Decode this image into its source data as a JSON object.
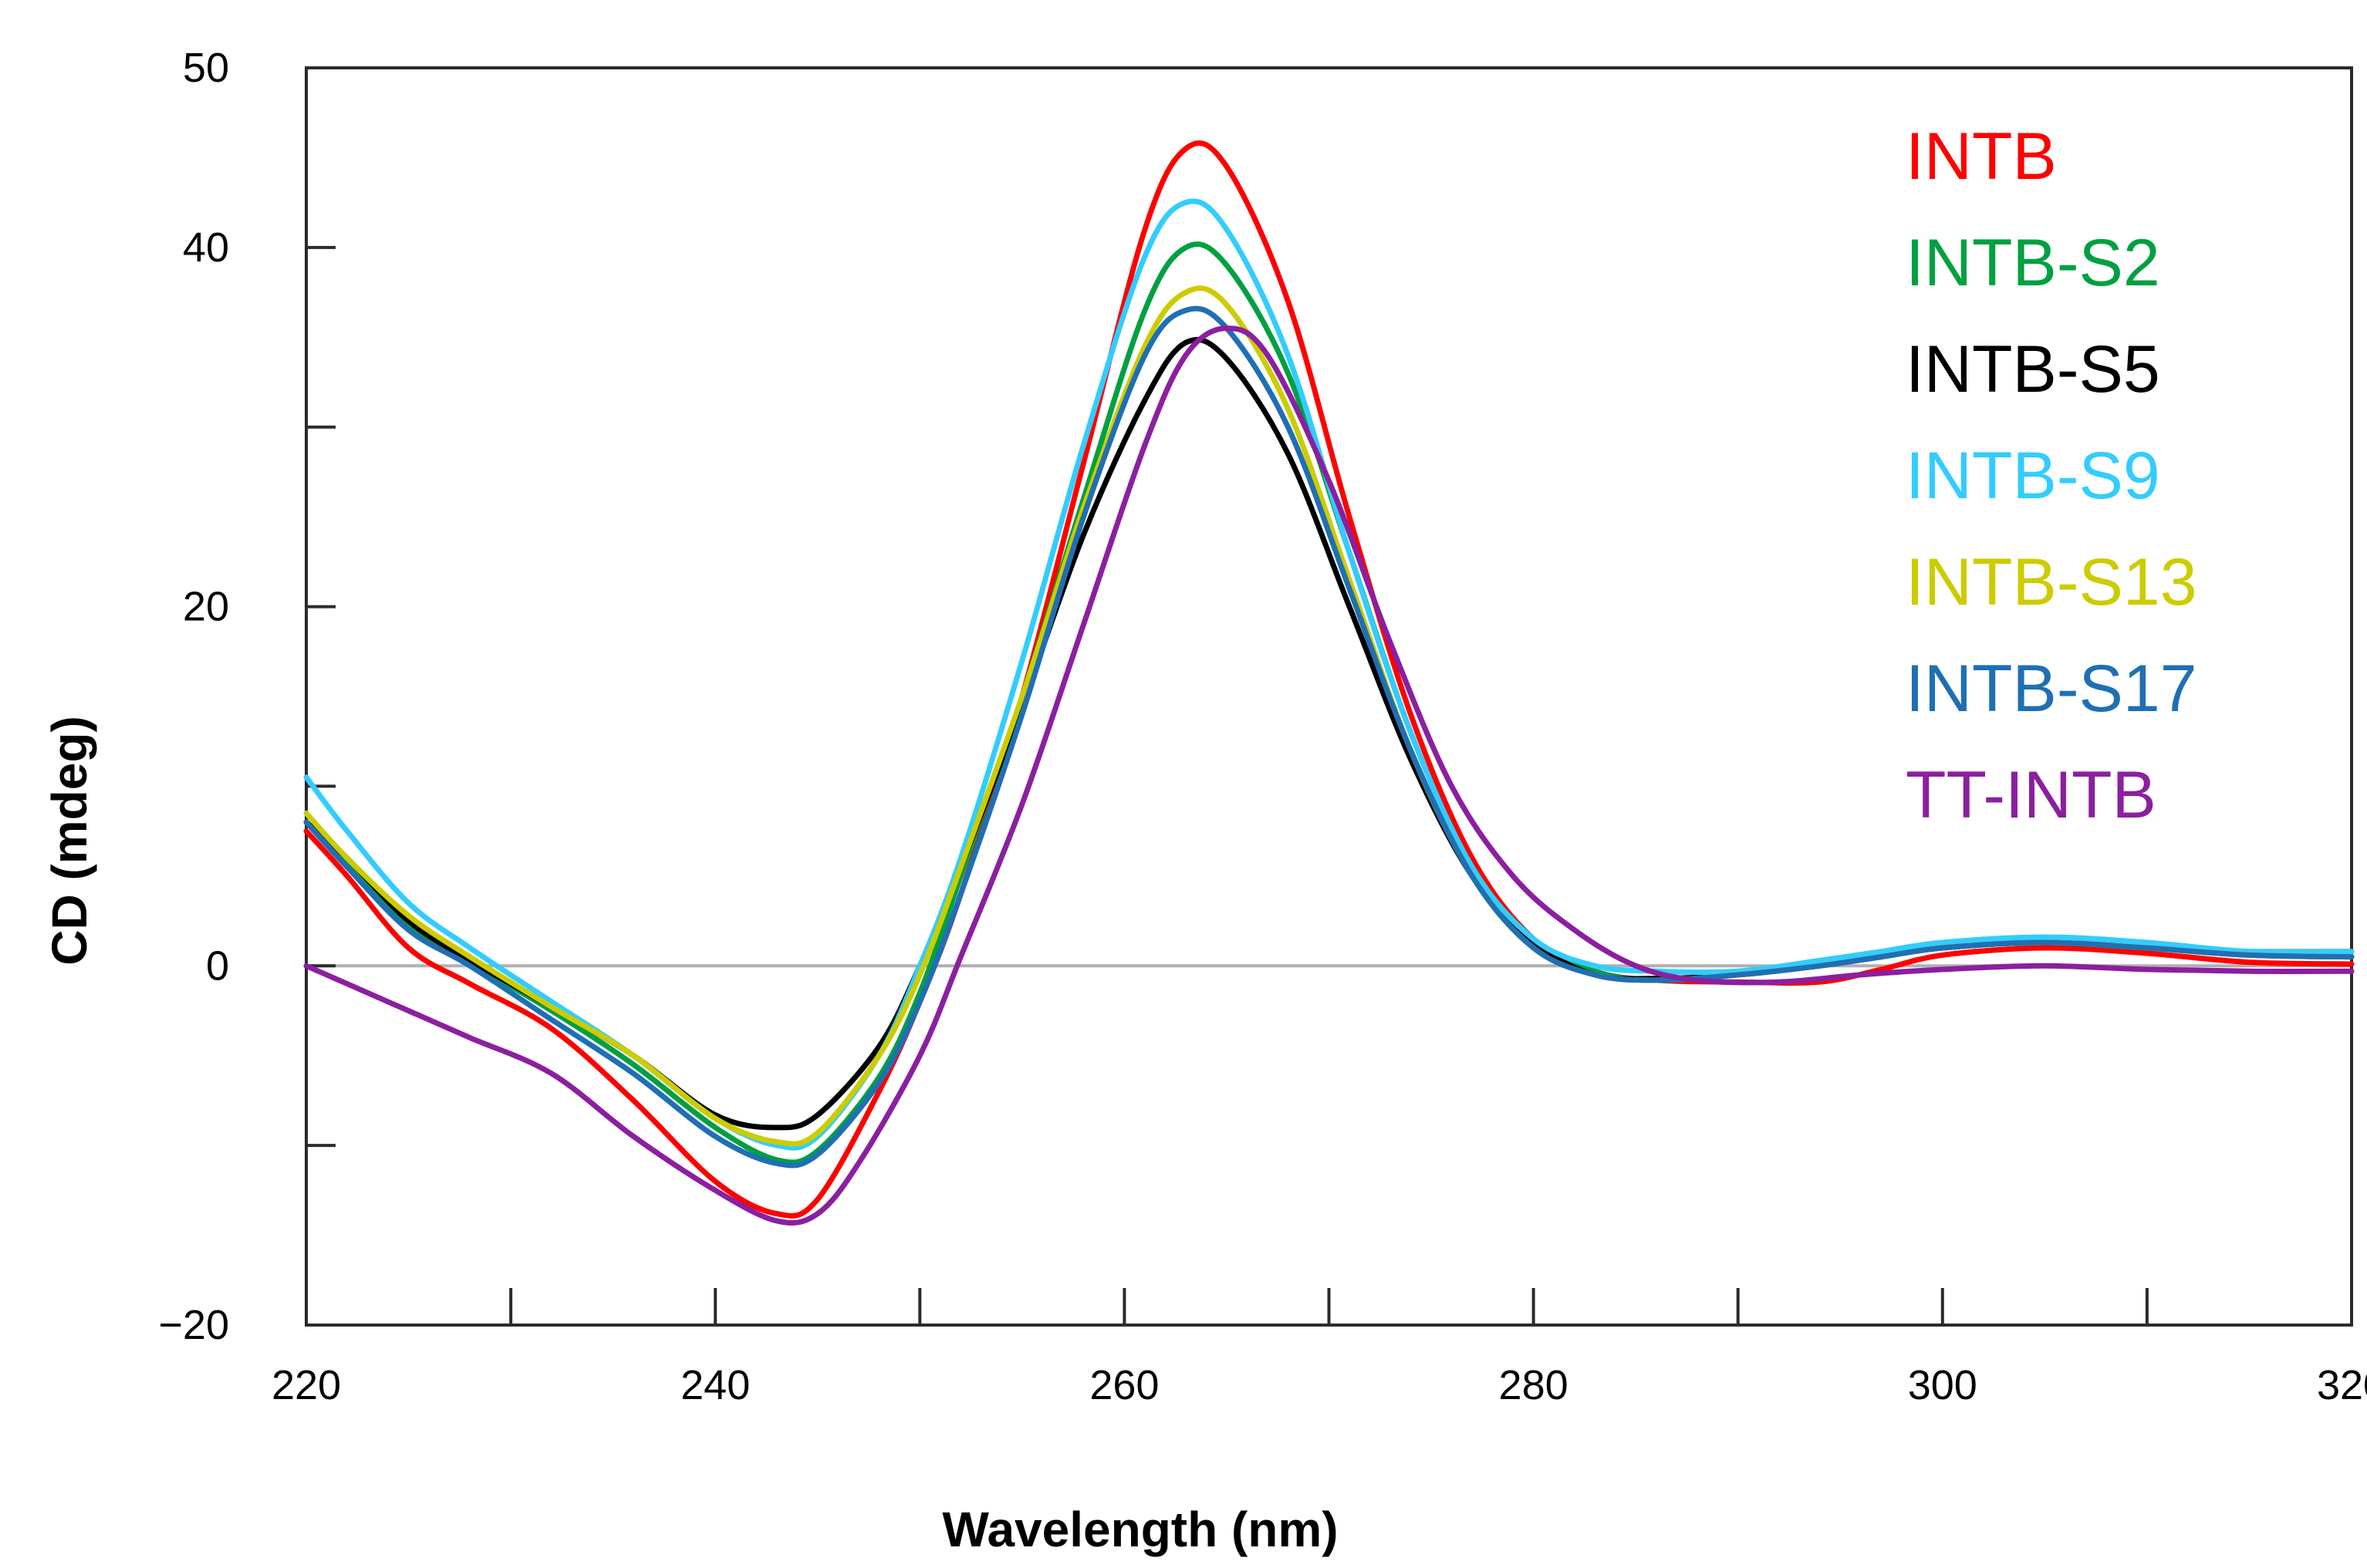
{
  "chart_data": {
    "type": "line",
    "title": "",
    "xlabel": "Wavelength (nm)",
    "ylabel": "CD (mdeg)",
    "xlim": [
      220,
      320
    ],
    "ylim": [
      -20,
      50
    ],
    "x_ticks": [
      220,
      240,
      260,
      280,
      300,
      320
    ],
    "x_tick_labels": [
      "220",
      "240",
      "260",
      "280",
      "300",
      "320"
    ],
    "x_minor_ticks": [
      230,
      250,
      270,
      290,
      310
    ],
    "y_ticks": [
      -20,
      0,
      20,
      40,
      50
    ],
    "y_tick_labels": [
      "−20",
      "0",
      "20",
      "40",
      "50"
    ],
    "y_minor_ticks": [
      -10,
      10,
      30
    ],
    "zero_line": true,
    "grid": false,
    "legend_position": "top-right",
    "series": [
      {
        "name": "INTB",
        "color": "#ff0000",
        "points": [
          [
            220,
            7.5
          ],
          [
            222,
            5.0
          ],
          [
            225,
            1.0
          ],
          [
            228,
            -1.0
          ],
          [
            232,
            -3.5
          ],
          [
            236,
            -7.5
          ],
          [
            240,
            -12.0
          ],
          [
            243,
            -13.8
          ],
          [
            245,
            -13.0
          ],
          [
            248,
            -7.0
          ],
          [
            250,
            -2.0
          ],
          [
            252,
            4.0
          ],
          [
            255,
            15.0
          ],
          [
            258,
            28.0
          ],
          [
            261,
            41.0
          ],
          [
            263,
            45.5
          ],
          [
            265,
            44.5
          ],
          [
            268,
            37.0
          ],
          [
            271,
            25.0
          ],
          [
            274,
            14.0
          ],
          [
            277,
            6.0
          ],
          [
            280,
            1.5
          ],
          [
            283,
            -0.3
          ],
          [
            286,
            -0.8
          ],
          [
            290,
            -0.9
          ],
          [
            294,
            -0.9
          ],
          [
            297,
            -0.2
          ],
          [
            300,
            0.6
          ],
          [
            305,
            1.0
          ],
          [
            310,
            0.7
          ],
          [
            315,
            0.2
          ],
          [
            320,
            0.1
          ]
        ]
      },
      {
        "name": "INTB-S2",
        "color": "#00a040",
        "points": [
          [
            220,
            8.0
          ],
          [
            222,
            5.8
          ],
          [
            225,
            2.3
          ],
          [
            228,
            0.2
          ],
          [
            232,
            -2.5
          ],
          [
            236,
            -5.5
          ],
          [
            240,
            -9.0
          ],
          [
            243,
            -10.8
          ],
          [
            245,
            -10.3
          ],
          [
            248,
            -6.2
          ],
          [
            250,
            -1.5
          ],
          [
            252,
            5.0
          ],
          [
            255,
            15.0
          ],
          [
            258,
            26.0
          ],
          [
            261,
            36.5
          ],
          [
            263,
            40.0
          ],
          [
            265,
            39.0
          ],
          [
            268,
            33.0
          ],
          [
            271,
            23.0
          ],
          [
            274,
            13.0
          ],
          [
            277,
            5.5
          ],
          [
            280,
            1.5
          ],
          [
            283,
            -0.3
          ],
          [
            286,
            -0.8
          ],
          [
            290,
            -0.5
          ],
          [
            294,
            0.0
          ],
          [
            297,
            0.5
          ],
          [
            300,
            1.0
          ],
          [
            305,
            1.3
          ],
          [
            310,
            1.0
          ],
          [
            315,
            0.8
          ],
          [
            320,
            0.8
          ]
        ]
      },
      {
        "name": "INTB-S5",
        "color": "#000000",
        "points": [
          [
            220,
            8.0
          ],
          [
            222,
            6.0
          ],
          [
            225,
            2.5
          ],
          [
            228,
            0.3
          ],
          [
            232,
            -2.3
          ],
          [
            236,
            -5.0
          ],
          [
            240,
            -8.3
          ],
          [
            243,
            -9.0
          ],
          [
            245,
            -8.3
          ],
          [
            248,
            -4.5
          ],
          [
            250,
            0.0
          ],
          [
            252,
            5.5
          ],
          [
            255,
            14.5
          ],
          [
            258,
            24.0
          ],
          [
            261,
            31.5
          ],
          [
            263,
            34.7
          ],
          [
            265,
            33.8
          ],
          [
            268,
            28.5
          ],
          [
            271,
            20.0
          ],
          [
            274,
            11.5
          ],
          [
            277,
            5.0
          ],
          [
            280,
            1.3
          ],
          [
            283,
            -0.5
          ],
          [
            286,
            -0.7
          ],
          [
            290,
            -0.5
          ],
          [
            294,
            0.0
          ],
          [
            297,
            0.5
          ],
          [
            300,
            1.0
          ],
          [
            305,
            1.3
          ],
          [
            310,
            1.0
          ],
          [
            315,
            0.6
          ],
          [
            320,
            0.5
          ]
        ]
      },
      {
        "name": "INTB-S9",
        "color": "#33ccff",
        "points": [
          [
            220,
            10.5
          ],
          [
            222,
            7.5
          ],
          [
            225,
            3.5
          ],
          [
            228,
            1.0
          ],
          [
            232,
            -2.0
          ],
          [
            236,
            -5.0
          ],
          [
            240,
            -8.5
          ],
          [
            243,
            -10.0
          ],
          [
            245,
            -9.5
          ],
          [
            248,
            -5.0
          ],
          [
            250,
            0.0
          ],
          [
            252,
            6.0
          ],
          [
            255,
            17.0
          ],
          [
            258,
            29.0
          ],
          [
            261,
            39.5
          ],
          [
            263,
            42.5
          ],
          [
            265,
            41.0
          ],
          [
            268,
            34.0
          ],
          [
            271,
            23.0
          ],
          [
            274,
            13.0
          ],
          [
            277,
            5.5
          ],
          [
            280,
            1.5
          ],
          [
            283,
            0.0
          ],
          [
            286,
            -0.3
          ],
          [
            290,
            -0.3
          ],
          [
            294,
            0.3
          ],
          [
            297,
            0.8
          ],
          [
            300,
            1.3
          ],
          [
            305,
            1.6
          ],
          [
            310,
            1.3
          ],
          [
            315,
            0.8
          ],
          [
            320,
            0.8
          ]
        ]
      },
      {
        "name": "INTB-S13",
        "color": "#cccc00",
        "points": [
          [
            220,
            8.5
          ],
          [
            222,
            6.0
          ],
          [
            225,
            2.8
          ],
          [
            228,
            0.5
          ],
          [
            232,
            -2.3
          ],
          [
            236,
            -5.0
          ],
          [
            240,
            -8.5
          ],
          [
            243,
            -9.8
          ],
          [
            245,
            -9.3
          ],
          [
            248,
            -5.0
          ],
          [
            250,
            -0.5
          ],
          [
            252,
            5.5
          ],
          [
            255,
            15.0
          ],
          [
            258,
            25.5
          ],
          [
            261,
            34.5
          ],
          [
            263,
            37.5
          ],
          [
            265,
            36.8
          ],
          [
            268,
            31.0
          ],
          [
            271,
            21.5
          ],
          [
            274,
            12.0
          ],
          [
            277,
            5.0
          ],
          [
            280,
            1.0
          ],
          [
            283,
            -0.5
          ],
          [
            286,
            -0.8
          ],
          [
            290,
            -0.5
          ],
          [
            294,
            0.0
          ],
          [
            297,
            0.5
          ],
          [
            300,
            1.0
          ],
          [
            305,
            1.3
          ],
          [
            310,
            1.0
          ],
          [
            315,
            0.6
          ],
          [
            320,
            0.5
          ]
        ]
      },
      {
        "name": "INTB-S17",
        "color": "#1f6fb4",
        "points": [
          [
            220,
            8.0
          ],
          [
            222,
            5.5
          ],
          [
            225,
            2.0
          ],
          [
            228,
            0.0
          ],
          [
            232,
            -3.0
          ],
          [
            236,
            -6.0
          ],
          [
            240,
            -9.5
          ],
          [
            243,
            -11.0
          ],
          [
            245,
            -10.5
          ],
          [
            248,
            -6.5
          ],
          [
            250,
            -2.0
          ],
          [
            252,
            4.0
          ],
          [
            255,
            14.0
          ],
          [
            258,
            25.0
          ],
          [
            261,
            34.0
          ],
          [
            263,
            36.5
          ],
          [
            265,
            35.5
          ],
          [
            268,
            30.0
          ],
          [
            271,
            21.0
          ],
          [
            274,
            12.0
          ],
          [
            277,
            5.0
          ],
          [
            280,
            1.0
          ],
          [
            283,
            -0.5
          ],
          [
            286,
            -0.8
          ],
          [
            290,
            -0.5
          ],
          [
            294,
            0.0
          ],
          [
            297,
            0.5
          ],
          [
            300,
            1.0
          ],
          [
            305,
            1.3
          ],
          [
            310,
            1.0
          ],
          [
            315,
            0.6
          ],
          [
            320,
            0.5
          ]
        ]
      },
      {
        "name": "TT-INTB",
        "color": "#8b1fa0",
        "points": [
          [
            220,
            0.0
          ],
          [
            222,
            -1.0
          ],
          [
            225,
            -2.5
          ],
          [
            228,
            -4.0
          ],
          [
            232,
            -6.0
          ],
          [
            236,
            -9.5
          ],
          [
            240,
            -12.5
          ],
          [
            243,
            -14.2
          ],
          [
            245,
            -13.8
          ],
          [
            247,
            -11.0
          ],
          [
            250,
            -5.0
          ],
          [
            252,
            0.5
          ],
          [
            255,
            9.0
          ],
          [
            258,
            19.0
          ],
          [
            261,
            29.0
          ],
          [
            263,
            34.0
          ],
          [
            265,
            35.5
          ],
          [
            267,
            34.0
          ],
          [
            270,
            27.0
          ],
          [
            273,
            18.0
          ],
          [
            276,
            10.0
          ],
          [
            279,
            5.0
          ],
          [
            282,
            2.0
          ],
          [
            285,
            0.0
          ],
          [
            288,
            -0.8
          ],
          [
            292,
            -0.9
          ],
          [
            296,
            -0.5
          ],
          [
            300,
            -0.2
          ],
          [
            305,
            0.0
          ],
          [
            310,
            -0.2
          ],
          [
            315,
            -0.3
          ],
          [
            320,
            -0.3
          ]
        ]
      }
    ]
  }
}
